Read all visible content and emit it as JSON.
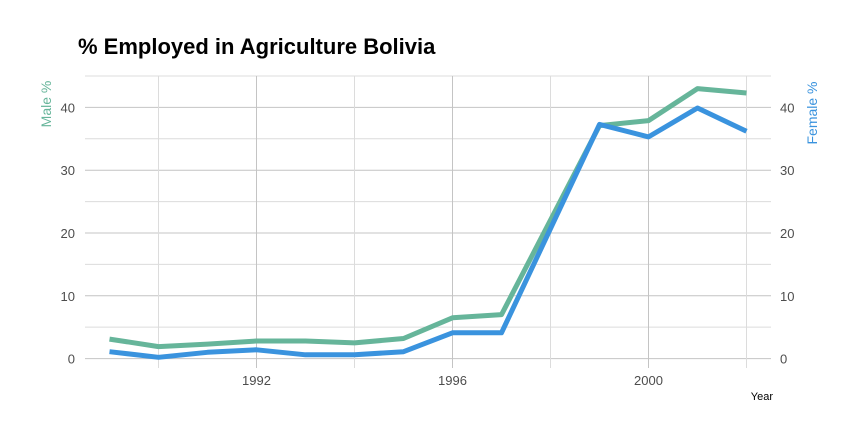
{
  "chart_data": {
    "type": "line",
    "title": "% Employed in Agriculture Bolivia",
    "xlabel": "Year",
    "ylabel_left": "Male %",
    "ylabel_right": "Female %",
    "xlim": [
      1988.5,
      2002.5
    ],
    "ylim": [
      -1.5,
      45
    ],
    "x_ticks": [
      1992,
      1996,
      2000
    ],
    "x_tick_labels": [
      "1992",
      "1996",
      "2000"
    ],
    "y_ticks": [
      0,
      10,
      20,
      30,
      40
    ],
    "y_tick_labels": [
      "0",
      "10",
      "20",
      "30",
      "40"
    ],
    "grid": true,
    "x": [
      1989,
      1990,
      1991,
      1992,
      1993,
      1994,
      1995,
      1996,
      1997,
      1999,
      2000,
      2001,
      2002
    ],
    "series": [
      {
        "name": "Male %",
        "color": "#66b59a",
        "values": [
          3.1,
          1.9,
          2.3,
          2.8,
          2.8,
          2.5,
          3.2,
          6.5,
          7.0,
          37.1,
          37.9,
          43.0,
          42.3
        ]
      },
      {
        "name": "Female %",
        "color": "#3a93de",
        "values": [
          1.1,
          0.2,
          1.0,
          1.4,
          0.6,
          0.6,
          1.1,
          4.1,
          4.1,
          37.3,
          35.3,
          39.9,
          36.2
        ]
      }
    ]
  }
}
